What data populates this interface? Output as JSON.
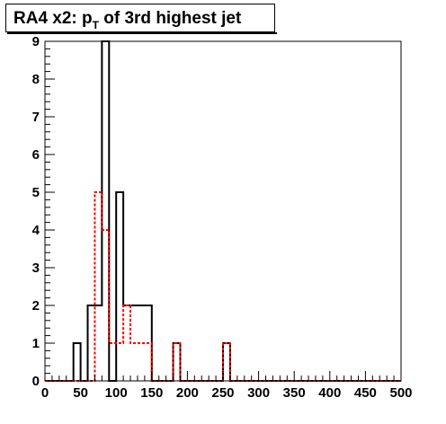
{
  "chart_data": {
    "type": "histogram",
    "title_prefix": "RA4 x2: p",
    "title_sub": "T",
    "title_suffix": " of 3rd highest jet",
    "xlabel": "",
    "ylabel": "",
    "xlim": [
      0,
      500
    ],
    "ylim": [
      0,
      9
    ],
    "x_ticks": [
      0,
      50,
      100,
      150,
      200,
      250,
      300,
      350,
      400,
      450,
      500
    ],
    "y_ticks": [
      0,
      1,
      2,
      3,
      4,
      5,
      6,
      7,
      8,
      9
    ],
    "bin_edges": [
      0,
      10,
      20,
      30,
      40,
      50,
      60,
      70,
      80,
      90,
      100,
      110,
      120,
      130,
      140,
      150,
      160,
      170,
      180,
      190,
      200,
      210,
      220,
      230,
      240,
      250,
      260,
      270,
      280,
      290,
      300,
      310,
      320,
      330,
      340,
      350,
      360,
      370,
      380,
      390,
      400,
      410,
      420,
      430,
      440,
      450,
      460,
      470,
      480,
      490,
      500
    ],
    "series": [
      {
        "style": "solid",
        "color": "#000000",
        "values": [
          0,
          0,
          0,
          0,
          1,
          0,
          2,
          2,
          9,
          0,
          5,
          2,
          2,
          2,
          2,
          0,
          0,
          0,
          1,
          0,
          0,
          0,
          0,
          0,
          0,
          1,
          0,
          0,
          0,
          0,
          0,
          0,
          0,
          0,
          0,
          0,
          0,
          0,
          0,
          0,
          0,
          0,
          0,
          0,
          0,
          0,
          0,
          0,
          0,
          0
        ]
      },
      {
        "style": "dashed",
        "color": "#ff0000",
        "values": [
          0,
          0,
          0,
          0,
          0,
          0,
          0,
          5,
          4,
          1,
          1,
          2,
          1,
          1,
          1,
          0,
          0,
          0,
          1,
          0,
          0,
          0,
          0,
          0,
          0,
          1,
          0,
          0,
          0,
          0,
          0,
          0,
          0,
          0,
          0,
          0,
          0,
          0,
          0,
          0,
          0,
          0,
          0,
          0,
          0,
          0,
          0,
          0,
          0,
          0
        ]
      }
    ]
  }
}
